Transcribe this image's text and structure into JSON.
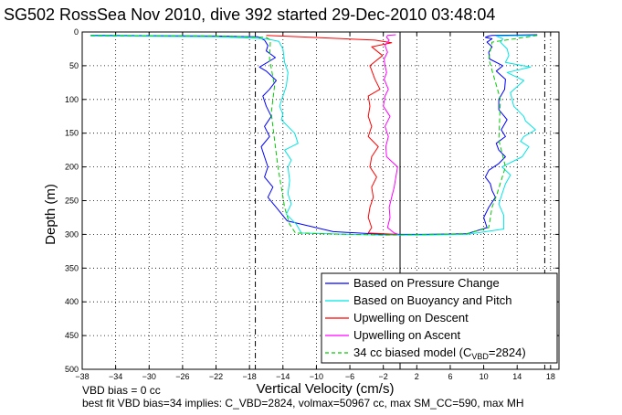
{
  "chart_data": {
    "type": "line",
    "title": "SG502 RossSea Nov 2010, dive 392 started 29-Dec-2010 03:48:04",
    "xlabel": "Vertical Velocity (cm/s)",
    "ylabel": "Depth (m)",
    "xlim": [
      -38,
      19
    ],
    "ylim": [
      500,
      0
    ],
    "y_reversed": true,
    "xticks": [
      -38,
      -34,
      -30,
      -26,
      -22,
      -18,
      -14,
      -10,
      -6,
      -2,
      2,
      6,
      10,
      14,
      18
    ],
    "yticks": [
      0,
      50,
      100,
      150,
      200,
      250,
      300,
      350,
      400,
      450,
      500
    ],
    "xtick_labels": [
      "−38",
      "−34",
      "−30",
      "−26",
      "−22",
      "−18",
      "−14",
      "−10",
      "−6",
      "−2",
      "2",
      "6",
      "10",
      "14",
      "18"
    ],
    "ytick_labels": [
      "0",
      "50",
      "100",
      "150",
      "200",
      "250",
      "300",
      "350",
      "400",
      "450",
      "500"
    ],
    "grid": true,
    "legend_position": "bottom-right",
    "reference_lines": {
      "dashed_vertical_x": [
        -17.3,
        17.3
      ],
      "solid_vertical_x": 0
    },
    "series": [
      {
        "name": "Based on Pressure Change",
        "color": "#0000ff",
        "style": "solid",
        "x": [
          -37,
          -22,
          -17,
          -16.2,
          -15.8,
          -16.0,
          -14.9,
          -16.8,
          -16.0,
          -14.8,
          -15.6,
          -16.4,
          -16.0,
          -15.4,
          -16.2,
          -15.6,
          -16.6,
          -16.2,
          -15.8,
          -16.2,
          -15.2,
          -15.8,
          -14.8,
          -13.5,
          -8,
          -2,
          3,
          8,
          10.4,
          10.0,
          10.6,
          11.4,
          11.0,
          10.8,
          10.2,
          10.6,
          11.8,
          12.6,
          11.8,
          11.5,
          12.6,
          12.1,
          12.8,
          11.8,
          11.8,
          12.5,
          12.6,
          11.5,
          12.3,
          10.7,
          10.6,
          11.0,
          10.4,
          11.0,
          10.2,
          10.6,
          11.0,
          16.4
        ],
        "y": [
          5,
          6,
          7,
          12,
          20,
          28,
          38,
          52,
          58,
          72,
          85,
          95,
          110,
          125,
          140,
          155,
          170,
          185,
          200,
          215,
          230,
          245,
          260,
          280,
          296,
          300,
          300,
          299,
          290,
          275,
          260,
          245,
          235,
          225,
          215,
          205,
          195,
          185,
          175,
          165,
          155,
          145,
          130,
          115,
          100,
          85,
          70,
          58,
          50,
          40,
          30,
          22,
          15,
          10,
          8,
          6,
          5,
          4
        ]
      },
      {
        "name": "Based on Buoyancy and Pitch",
        "color": "#00e5e5",
        "style": "solid",
        "x": [
          -37,
          -22,
          -16,
          -14.5,
          -14.0,
          -13.8,
          -13.4,
          -13.6,
          -14.0,
          -14.4,
          -14.0,
          -14.2,
          -13.8,
          -12.6,
          -12.2,
          -13.8,
          -13.0,
          -13.4,
          -13.2,
          -13.4,
          -13.0,
          -13.6,
          -12.4,
          -11.8,
          -6,
          -2,
          3,
          8,
          12.4,
          12.4,
          11.8,
          12.2,
          12.6,
          13.2,
          12.2,
          14.6,
          15.4,
          14.4,
          14.8,
          16.2,
          15.0,
          14.8,
          13.6,
          13.2,
          14.8,
          12.8,
          15.6,
          12.6,
          13.0,
          12.8,
          12.0,
          12.3,
          11.5,
          16.4
        ],
        "y": [
          6,
          7,
          10,
          14,
          25,
          45,
          60,
          80,
          95,
          110,
          122,
          130,
          135,
          150,
          165,
          175,
          190,
          200,
          220,
          240,
          255,
          270,
          285,
          298,
          300,
          301,
          301,
          300,
          292,
          272,
          255,
          240,
          225,
          212,
          200,
          185,
          170,
          162,
          155,
          145,
          132,
          125,
          110,
          90,
          72,
          60,
          52,
          45,
          35,
          25,
          15,
          10,
          6,
          5
        ]
      },
      {
        "name": "Upwelling on Descent",
        "color": "#ff0000",
        "style": "solid",
        "x": [
          -16.0,
          -12.0,
          -3.0,
          -1.0,
          -3.4,
          -2.1,
          -3.6,
          -3.0,
          -2.4,
          -3.8,
          -3.6,
          -3.8,
          -3.4,
          -3.8,
          -2.6,
          -3.4,
          -3.6,
          -2.8,
          -3.4,
          -3.2,
          -3.6,
          -3.8,
          -3.4,
          -3.8,
          -0.4
        ],
        "y": [
          5,
          7,
          12,
          16,
          22,
          35,
          50,
          70,
          85,
          95,
          110,
          125,
          140,
          155,
          170,
          185,
          200,
          215,
          230,
          245,
          260,
          275,
          290,
          298,
          300
        ]
      },
      {
        "name": "Upwelling on Ascent",
        "color": "#ff00ff",
        "style": "solid",
        "x": [
          -0.2,
          -0.7,
          -1.5,
          -1.2,
          -1.3,
          -1.0,
          -0.7,
          -0.5,
          -0.3,
          -1.6,
          -1.7,
          -1.4,
          -1.8,
          -1.2,
          -2.0,
          -1.8,
          -1.4,
          -1.9,
          -1.6,
          -1.8,
          -1.9,
          -1.5,
          -1.8,
          -1.3,
          -1.6,
          -1.5,
          -0.5
        ],
        "y": [
          300,
          298,
          290,
          275,
          260,
          245,
          230,
          215,
          200,
          185,
          170,
          155,
          140,
          125,
          110,
          95,
          85,
          70,
          60,
          50,
          40,
          30,
          20,
          12,
          8,
          5,
          4
        ]
      },
      {
        "name": "34 cc biased model (C",
        "name_subscript": "VBD",
        "name_suffix": "=2824)",
        "color": "#00cc00",
        "style": "dashed",
        "x": [
          -37,
          -22,
          -16,
          -15.5,
          -15.6,
          -15.0,
          -15.4,
          -15.0,
          -14.6,
          -14.2,
          -13.8,
          -13.2,
          -12.5,
          -6,
          -2,
          3,
          8,
          10.6,
          11.0,
          11.6,
          12.6,
          11.8,
          12.0,
          10.6,
          11.0,
          16.4
        ],
        "y": [
          5,
          6,
          8,
          12,
          40,
          80,
          120,
          160,
          200,
          230,
          260,
          285,
          298,
          300,
          301,
          300,
          299,
          290,
          260,
          240,
          200,
          160,
          100,
          40,
          15,
          5
        ]
      }
    ],
    "footer_lines": [
      "VBD bias = 0 cc",
      "best fit VBD bias=34 implies: C_VBD=2824, volmax=50967 cc, max SM_CC=590, max MH"
    ]
  }
}
